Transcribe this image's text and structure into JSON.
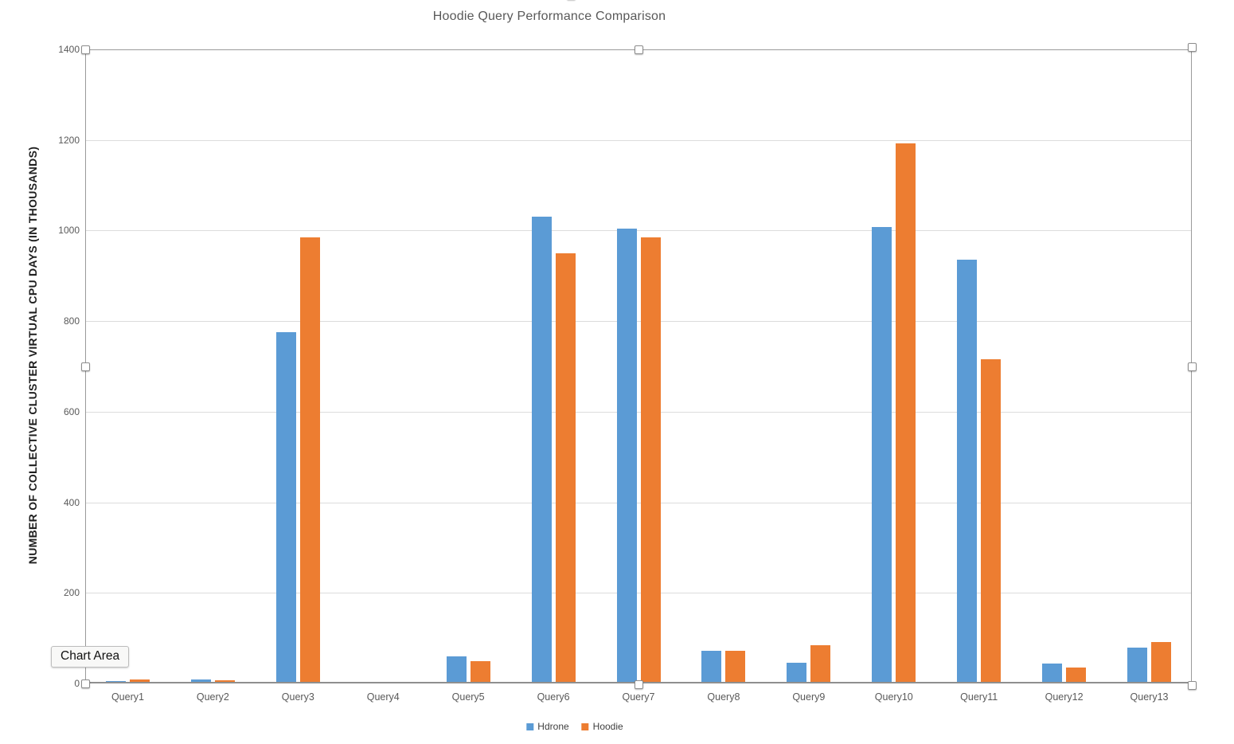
{
  "chart_data": {
    "type": "bar",
    "title": "Hoodie Query Performance Comparison",
    "xlabel": "",
    "ylabel": "NUMBER OF COLLECTIVE CLUSTER VIRTUAL CPU DAYS (IN THOUSANDS)",
    "categories": [
      "Query1",
      "Query2",
      "Query3",
      "Query4",
      "Query5",
      "Query6",
      "Query7",
      "Query8",
      "Query9",
      "Query10",
      "Query11",
      "Query12",
      "Query13"
    ],
    "series": [
      {
        "name": "Hdrone",
        "color": "#5B9BD5",
        "values": [
          5,
          8,
          775,
          4,
          60,
          1030,
          1005,
          72,
          46,
          1008,
          935,
          44,
          80
        ]
      },
      {
        "name": "Hoodie",
        "color": "#ED7D31",
        "values": [
          8,
          7,
          985,
          4,
          50,
          950,
          985,
          72,
          85,
          1193,
          716,
          36,
          91
        ]
      }
    ],
    "ylim": [
      0,
      1400
    ],
    "ytick_step": 200,
    "yticks": [
      0,
      200,
      400,
      600,
      800,
      1000,
      1200,
      1400
    ],
    "grid": true,
    "legend_position": "bottom"
  },
  "overlay": {
    "tooltip_label": "Chart Area",
    "selection": "plot-area-selected"
  },
  "colors": {
    "series_blue": "#5B9BD5",
    "series_orange": "#ED7D31",
    "gridline": "#dcdcdc",
    "axis_line": "#8f8f8f",
    "title_text": "#595959",
    "tick_text": "#595959"
  }
}
